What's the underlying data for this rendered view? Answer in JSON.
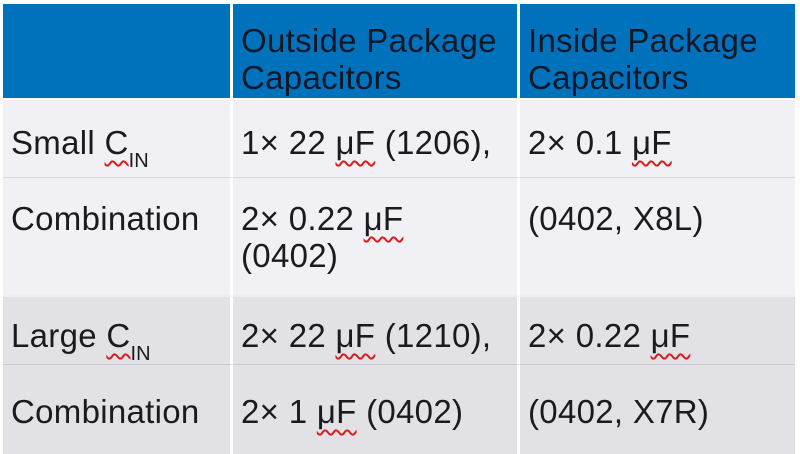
{
  "colors": {
    "header_bg": "#0072bc",
    "header_text": "#0d1726",
    "body_text": "#1b1b1f",
    "band_light": "#f1f1f5",
    "band_dark": "#e2e1e6",
    "column_separator": "#ffffff",
    "spellcheck_squiggle": "#d81e1e"
  },
  "header": {
    "corner": "",
    "outside_line1": "Outside Package",
    "outside_line2": "Capacitors",
    "inside_line1": "Inside Package",
    "inside_line2": "Capacitors"
  },
  "rows": {
    "small": {
      "label_pre": "Small ",
      "label_sym": "C",
      "label_sub": "IN",
      "outside_pre": "1× 22 ",
      "outside_mis": "μF",
      "outside_post": " (1206),",
      "inside_pre": "2× 0.1 ",
      "inside_mis": "μF"
    },
    "combo1": {
      "label": "Combination",
      "outside_line1_pre": "2× 0.22 ",
      "outside_line1_mis": "μF",
      "outside_line2": "(0402)",
      "inside": "(0402, X8L)"
    },
    "large": {
      "label_pre": "Large ",
      "label_sym": "C",
      "label_sub": "IN",
      "outside_pre": "2× 22 ",
      "outside_mis": "μF",
      "outside_post": " (1210),",
      "inside_pre": "2× 0.22 ",
      "inside_mis": "μF"
    },
    "combo2": {
      "label": "Combination",
      "outside_pre": "2× 1 ",
      "outside_mis": "μF",
      "outside_post": " (0402)",
      "inside": "(0402, X7R)"
    }
  }
}
